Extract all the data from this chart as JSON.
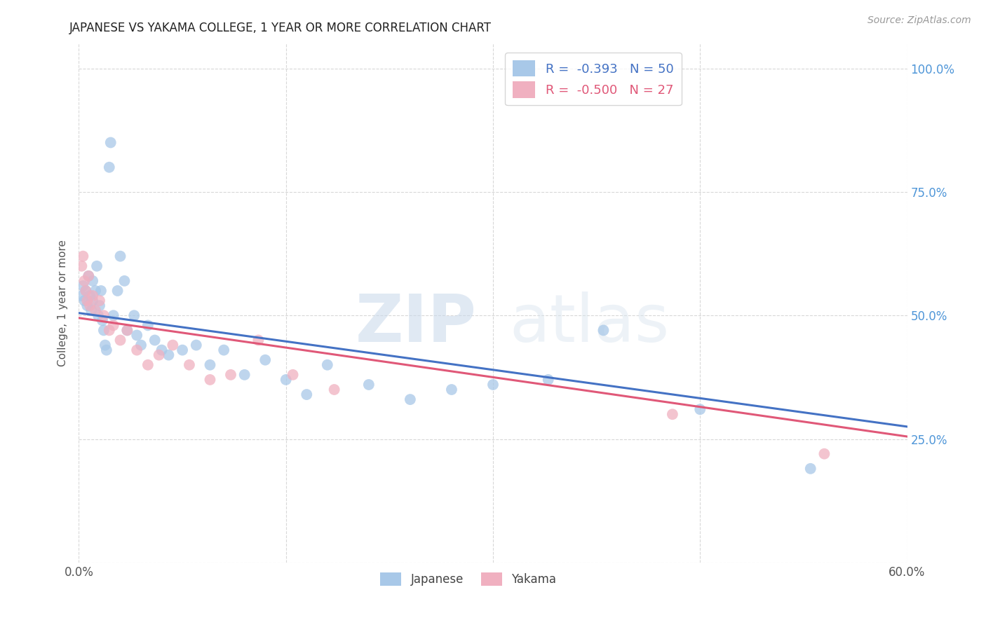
{
  "title": "JAPANESE VS YAKAMA COLLEGE, 1 YEAR OR MORE CORRELATION CHART",
  "source": "Source: ZipAtlas.com",
  "ylabel": "College, 1 year or more",
  "xlim": [
    0.0,
    0.6
  ],
  "ylim": [
    0.0,
    1.05
  ],
  "ytick_positions": [
    0.0,
    0.25,
    0.5,
    0.75,
    1.0
  ],
  "ytick_labels": [
    "",
    "25.0%",
    "50.0%",
    "75.0%",
    "100.0%"
  ],
  "watermark_zip": "ZIP",
  "watermark_atlas": "atlas",
  "blue_color": "#a8c8e8",
  "pink_color": "#f0b0c0",
  "line_blue": "#4472c4",
  "line_pink": "#e05878",
  "background_color": "#ffffff",
  "grid_color": "#d8d8d8",
  "japanese_x": [
    0.002,
    0.003,
    0.004,
    0.005,
    0.006,
    0.007,
    0.008,
    0.009,
    0.01,
    0.01,
    0.012,
    0.013,
    0.014,
    0.015,
    0.016,
    0.017,
    0.018,
    0.019,
    0.02,
    0.022,
    0.023,
    0.025,
    0.028,
    0.03,
    0.033,
    0.035,
    0.04,
    0.042,
    0.045,
    0.05,
    0.055,
    0.06,
    0.065,
    0.075,
    0.085,
    0.095,
    0.105,
    0.12,
    0.135,
    0.15,
    0.165,
    0.18,
    0.21,
    0.24,
    0.27,
    0.3,
    0.34,
    0.38,
    0.45,
    0.53
  ],
  "japanese_y": [
    0.54,
    0.56,
    0.53,
    0.55,
    0.52,
    0.58,
    0.54,
    0.51,
    0.57,
    0.53,
    0.55,
    0.6,
    0.5,
    0.52,
    0.55,
    0.49,
    0.47,
    0.44,
    0.43,
    0.8,
    0.85,
    0.5,
    0.55,
    0.62,
    0.57,
    0.47,
    0.5,
    0.46,
    0.44,
    0.48,
    0.45,
    0.43,
    0.42,
    0.43,
    0.44,
    0.4,
    0.43,
    0.38,
    0.41,
    0.37,
    0.34,
    0.4,
    0.36,
    0.33,
    0.35,
    0.36,
    0.37,
    0.47,
    0.31,
    0.19
  ],
  "yakama_x": [
    0.002,
    0.003,
    0.004,
    0.005,
    0.006,
    0.007,
    0.008,
    0.01,
    0.012,
    0.015,
    0.018,
    0.022,
    0.025,
    0.03,
    0.035,
    0.042,
    0.05,
    0.058,
    0.068,
    0.08,
    0.095,
    0.11,
    0.13,
    0.155,
    0.185,
    0.43,
    0.54
  ],
  "yakama_y": [
    0.6,
    0.62,
    0.57,
    0.55,
    0.53,
    0.58,
    0.52,
    0.54,
    0.51,
    0.53,
    0.5,
    0.47,
    0.48,
    0.45,
    0.47,
    0.43,
    0.4,
    0.42,
    0.44,
    0.4,
    0.37,
    0.38,
    0.45,
    0.38,
    0.35,
    0.3,
    0.22
  ],
  "legend_blue_r": "R = ",
  "legend_blue_rv": "-0.393",
  "legend_blue_n": "N = ",
  "legend_blue_nv": "50",
  "legend_pink_r": "R = ",
  "legend_pink_rv": "-0.500",
  "legend_pink_n": "N = ",
  "legend_pink_nv": "27"
}
